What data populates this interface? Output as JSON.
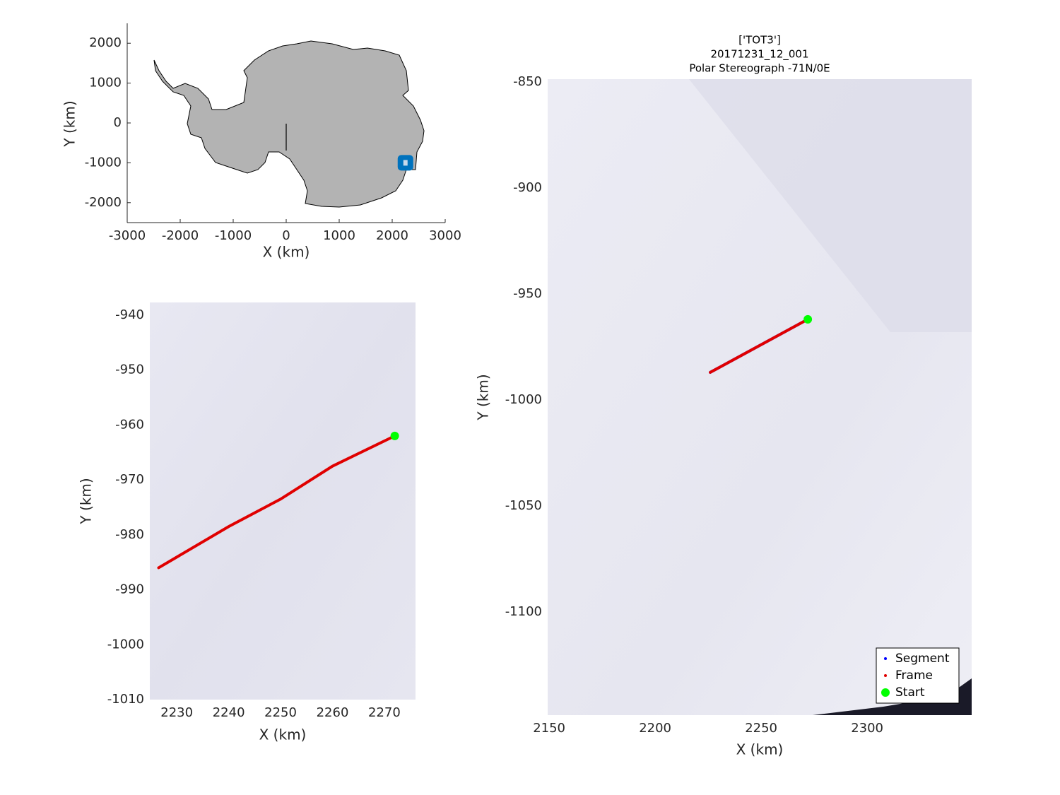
{
  "chart_data": [
    {
      "type": "map",
      "xlabel": "X (km)",
      "ylabel": "Y (km)",
      "xlim": [
        -3000,
        3000
      ],
      "ylim": [
        -2500,
        2500
      ],
      "xticks": [
        -3000,
        -2000,
        -1000,
        0,
        1000,
        2000,
        3000
      ],
      "yticks": [
        -2000,
        -1000,
        0,
        1000,
        2000
      ],
      "series": [
        {
          "x": [
            2250
          ],
          "y": [
            -1000
          ],
          "color": "#0072bd",
          "marker": "square"
        }
      ]
    },
    {
      "type": "line",
      "xlabel": "X (km)",
      "ylabel": "Y (km)",
      "xlim": [
        2224.8,
        2276
      ],
      "ylim": [
        -1010,
        -937.7
      ],
      "xticks": [
        2230,
        2240,
        2250,
        2260,
        2270
      ],
      "yticks": [
        -940,
        -950,
        -960,
        -970,
        -980,
        -990,
        -1000,
        -1010
      ],
      "series": [
        {
          "x": [
            2226.5,
            2240,
            2250,
            2260,
            2272
          ],
          "y": [
            -986,
            -978.5,
            -973.5,
            -967.5,
            -962
          ],
          "color": "#e00000",
          "marker": "line"
        },
        {
          "x": [
            2272
          ],
          "y": [
            -962
          ],
          "color": "#00ff00",
          "marker": "circle"
        }
      ]
    },
    {
      "type": "line",
      "title": [
        "['TOT3']",
        "20171231_12_001",
        "Polar Stereograph -71N/0E"
      ],
      "xlabel": "X (km)",
      "ylabel": "Y (km)",
      "xlim": [
        2149.3,
        2349.3
      ],
      "ylim": [
        -1148.7,
        -848.7
      ],
      "xticks": [
        2150,
        2200,
        2250,
        2300
      ],
      "yticks": [
        -850,
        -900,
        -950,
        -1000,
        -1050,
        -1100
      ],
      "legend": "southeast",
      "series": [
        {
          "name": "Segment",
          "x": [
            2226,
            2249,
            2272
          ],
          "y": [
            -987,
            -974.5,
            -962
          ],
          "color": "#0000ff",
          "marker": "line"
        },
        {
          "name": "Frame",
          "x": [
            2226,
            2249,
            2272
          ],
          "y": [
            -987,
            -974.5,
            -962
          ],
          "color": "#e00000",
          "marker": "line"
        },
        {
          "name": "Start",
          "x": [
            2272
          ],
          "y": [
            -962
          ],
          "color": "#00ff00",
          "marker": "circle"
        }
      ]
    }
  ]
}
